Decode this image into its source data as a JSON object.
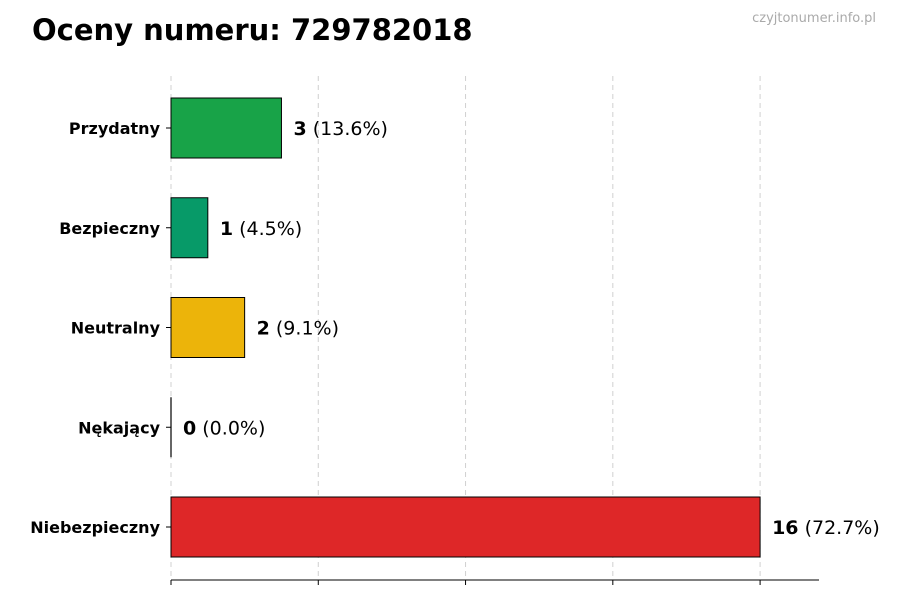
{
  "title": "Oceny numeru: 729782018",
  "watermark": "czyjtonumer.info.pl",
  "chart_data": {
    "type": "bar",
    "orientation": "horizontal",
    "categories": [
      "Przydatny",
      "Bezpieczny",
      "Neutralny",
      "Nękający",
      "Niebezpieczny"
    ],
    "values": [
      3,
      1,
      2,
      0,
      16
    ],
    "percent_labels": [
      "(13.6%)",
      "(4.5%)",
      "(9.1%)",
      "(0.0%)",
      "(72.7%)"
    ],
    "colors": [
      "#18a348",
      "#079a68",
      "#ecb40a",
      "#444444",
      "#de2728"
    ],
    "xlim": [
      0,
      17.6
    ],
    "x_grid_ticks": [
      0,
      4,
      8,
      12,
      16
    ],
    "grid": "vertical dashed",
    "title": "Oceny numeru: 729782018",
    "xlabel": "",
    "ylabel": ""
  }
}
